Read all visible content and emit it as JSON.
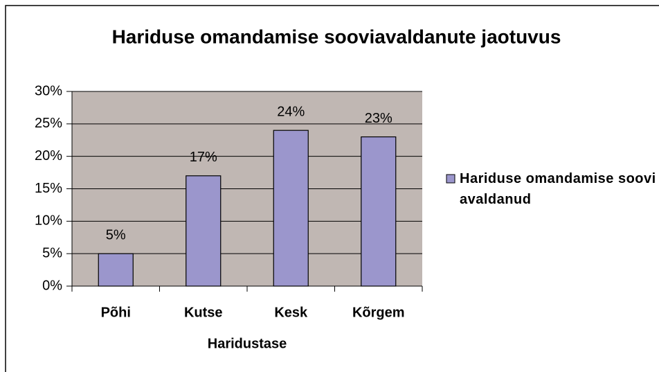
{
  "chart_data": {
    "type": "bar",
    "title": "Hariduse omandamise sooviavaldanute jaotuvus",
    "x_label": "Haridustase",
    "categories": [
      "Põhi",
      "Kutse",
      "Kesk",
      "Kõrgem"
    ],
    "series": [
      {
        "name": "Hariduse omandamise soovi avaldanud",
        "color": "#9b96cc",
        "values": [
          5,
          17,
          24,
          23
        ],
        "value_labels": [
          "5%",
          "17%",
          "24%",
          "23%"
        ]
      }
    ],
    "ylim": [
      0,
      30
    ],
    "yticks": [
      {
        "value": 0,
        "label": "0%"
      },
      {
        "value": 5,
        "label": "5%"
      },
      {
        "value": 10,
        "label": "10%"
      },
      {
        "value": 15,
        "label": "15%"
      },
      {
        "value": 20,
        "label": "20%"
      },
      {
        "value": 25,
        "label": "25%"
      },
      {
        "value": 30,
        "label": "30%"
      }
    ],
    "grid": true,
    "legend": "right"
  }
}
